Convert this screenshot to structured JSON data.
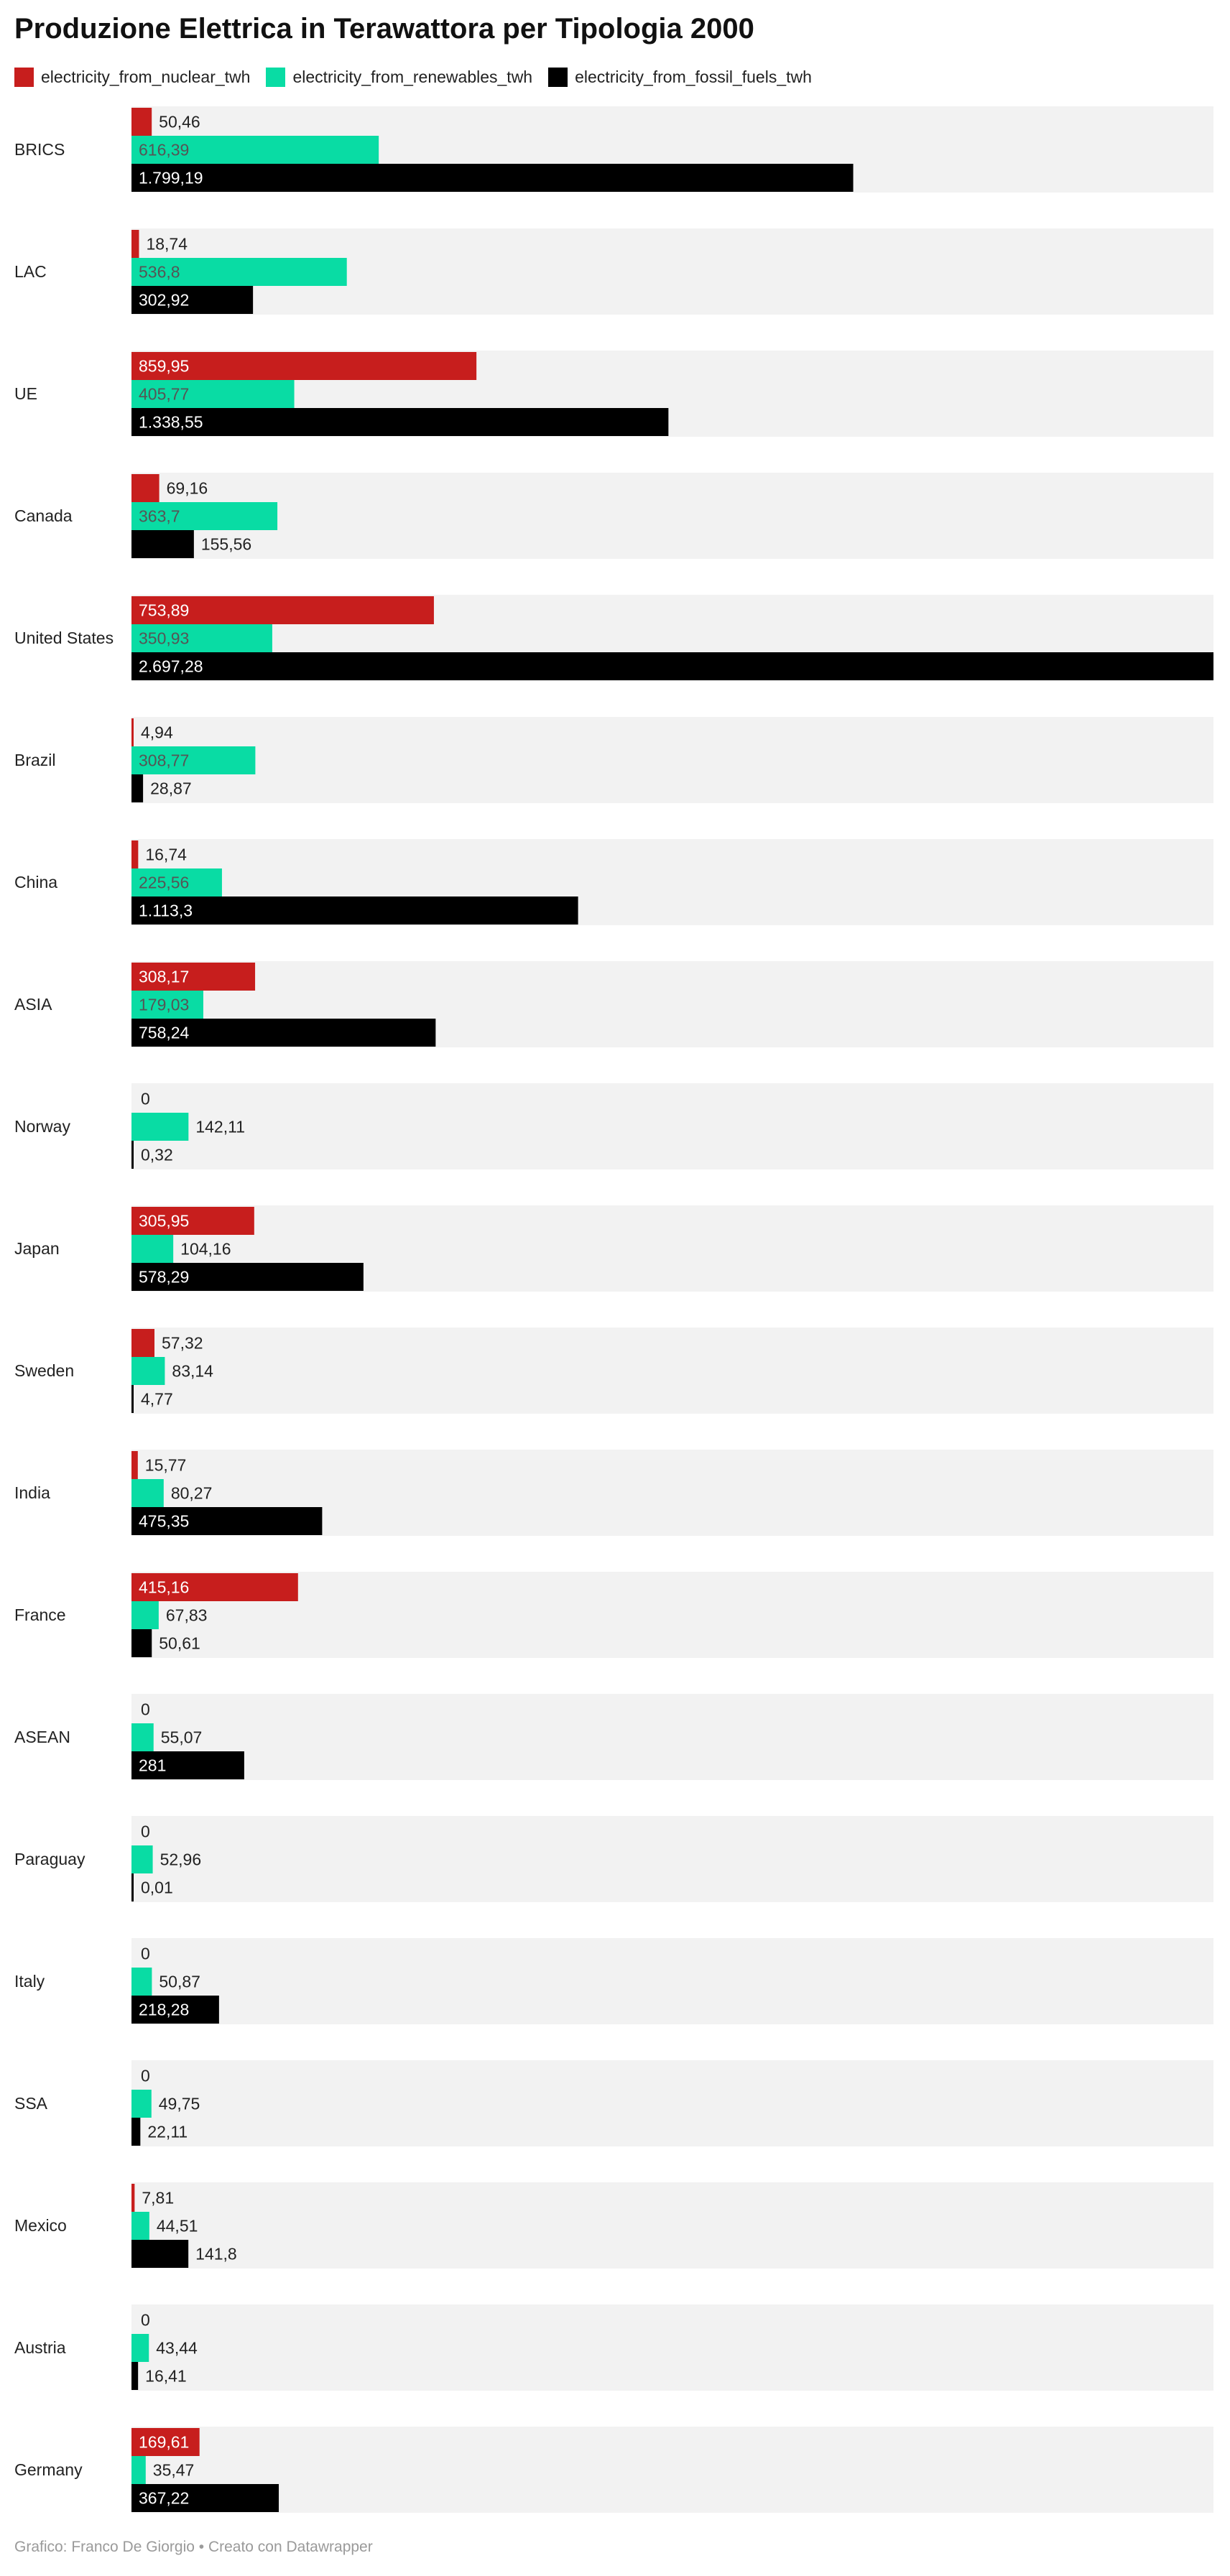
{
  "title": "Produzione Elettrica in Terawattora per Tipologia 2000",
  "footer": "Grafico: Franco De Giorgio • Creato con Datawrapper",
  "chart_data": {
    "type": "bar",
    "orientation": "horizontal-grouped",
    "title": "Produzione Elettrica in Terawattora per Tipologia 2000",
    "legend_placement": "top-left",
    "categories": [
      "BRICS",
      "LAC",
      "UE",
      "Canada",
      "United States",
      "Brazil",
      "China",
      "ASIA",
      "Norway",
      "Japan",
      "Sweden",
      "India",
      "France",
      "ASEAN",
      "Paraguay",
      "Italy",
      "SSA",
      "Mexico",
      "Austria",
      "Germany"
    ],
    "series": [
      {
        "name": "electricity_from_nuclear_twh",
        "color": "#c71e1d",
        "values": [
          50.46,
          18.74,
          859.95,
          69.16,
          753.89,
          4.94,
          16.74,
          308.17,
          0,
          305.95,
          57.32,
          15.77,
          415.16,
          0,
          0,
          0,
          0,
          7.81,
          0,
          169.61
        ],
        "labels": [
          "50,46",
          "18,74",
          "859,95",
          "69,16",
          "753,89",
          "4,94",
          "16,74",
          "308,17",
          "0",
          "305,95",
          "57,32",
          "15,77",
          "415,16",
          "0",
          "0",
          "0",
          "0",
          "7,81",
          "0",
          "169,61"
        ]
      },
      {
        "name": "electricity_from_renewables_twh",
        "color": "#09dca4",
        "values": [
          616.39,
          536.8,
          405.77,
          363.7,
          350.93,
          308.77,
          225.56,
          179.03,
          142.11,
          104.16,
          83.14,
          80.27,
          67.83,
          55.07,
          52.96,
          50.87,
          49.75,
          44.51,
          43.44,
          35.47
        ],
        "labels": [
          "616,39",
          "536,8",
          "405,77",
          "363,7",
          "350,93",
          "308,77",
          "225,56",
          "179,03",
          "142,11",
          "104,16",
          "83,14",
          "80,27",
          "67,83",
          "55,07",
          "52,96",
          "50,87",
          "49,75",
          "44,51",
          "43,44",
          "35,47"
        ]
      },
      {
        "name": "electricity_from_fossil_fuels_twh",
        "color": "#000000",
        "values": [
          1799.19,
          302.92,
          1338.55,
          155.56,
          2697.28,
          28.87,
          1113.3,
          758.24,
          0.32,
          578.29,
          4.77,
          475.35,
          50.61,
          281,
          0.01,
          218.28,
          22.11,
          141.8,
          16.41,
          367.22
        ],
        "labels": [
          "1.799,19",
          "302,92",
          "1.338,55",
          "155,56",
          "2.697,28",
          "28,87",
          "1.113,3",
          "758,24",
          "0,32",
          "578,29",
          "4,77",
          "475,35",
          "50,61",
          "281",
          "0,01",
          "218,28",
          "22,11",
          "141,8",
          "16,41",
          "367,22"
        ]
      }
    ],
    "xlim": [
      0,
      2697.28
    ],
    "grid": false
  }
}
